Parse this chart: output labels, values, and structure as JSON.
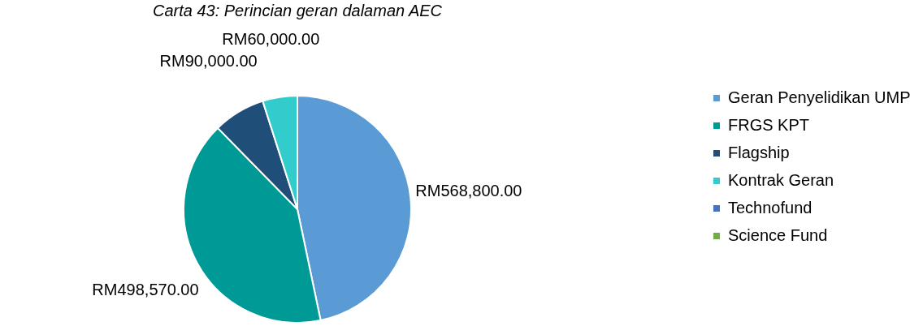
{
  "chart_data": {
    "type": "pie",
    "title": "Carta 43: Perincian geran dalaman AEC",
    "categories": [
      "Geran Penyelidikan UMP",
      "FRGS KPT",
      "Flagship",
      "Kontrak Geran",
      "Technofund",
      "Science Fund"
    ],
    "values": [
      568800,
      498570,
      90000,
      60000,
      0,
      0
    ],
    "colors": [
      "#5b9bd5",
      "#009a96",
      "#1f4e79",
      "#33cccc",
      "#4472c4",
      "#70ad47"
    ],
    "value_labels": [
      "RM568,800.00",
      "RM498,570.00",
      "RM90,000.00",
      "RM60,000.00",
      null,
      null
    ],
    "legend": "right"
  }
}
